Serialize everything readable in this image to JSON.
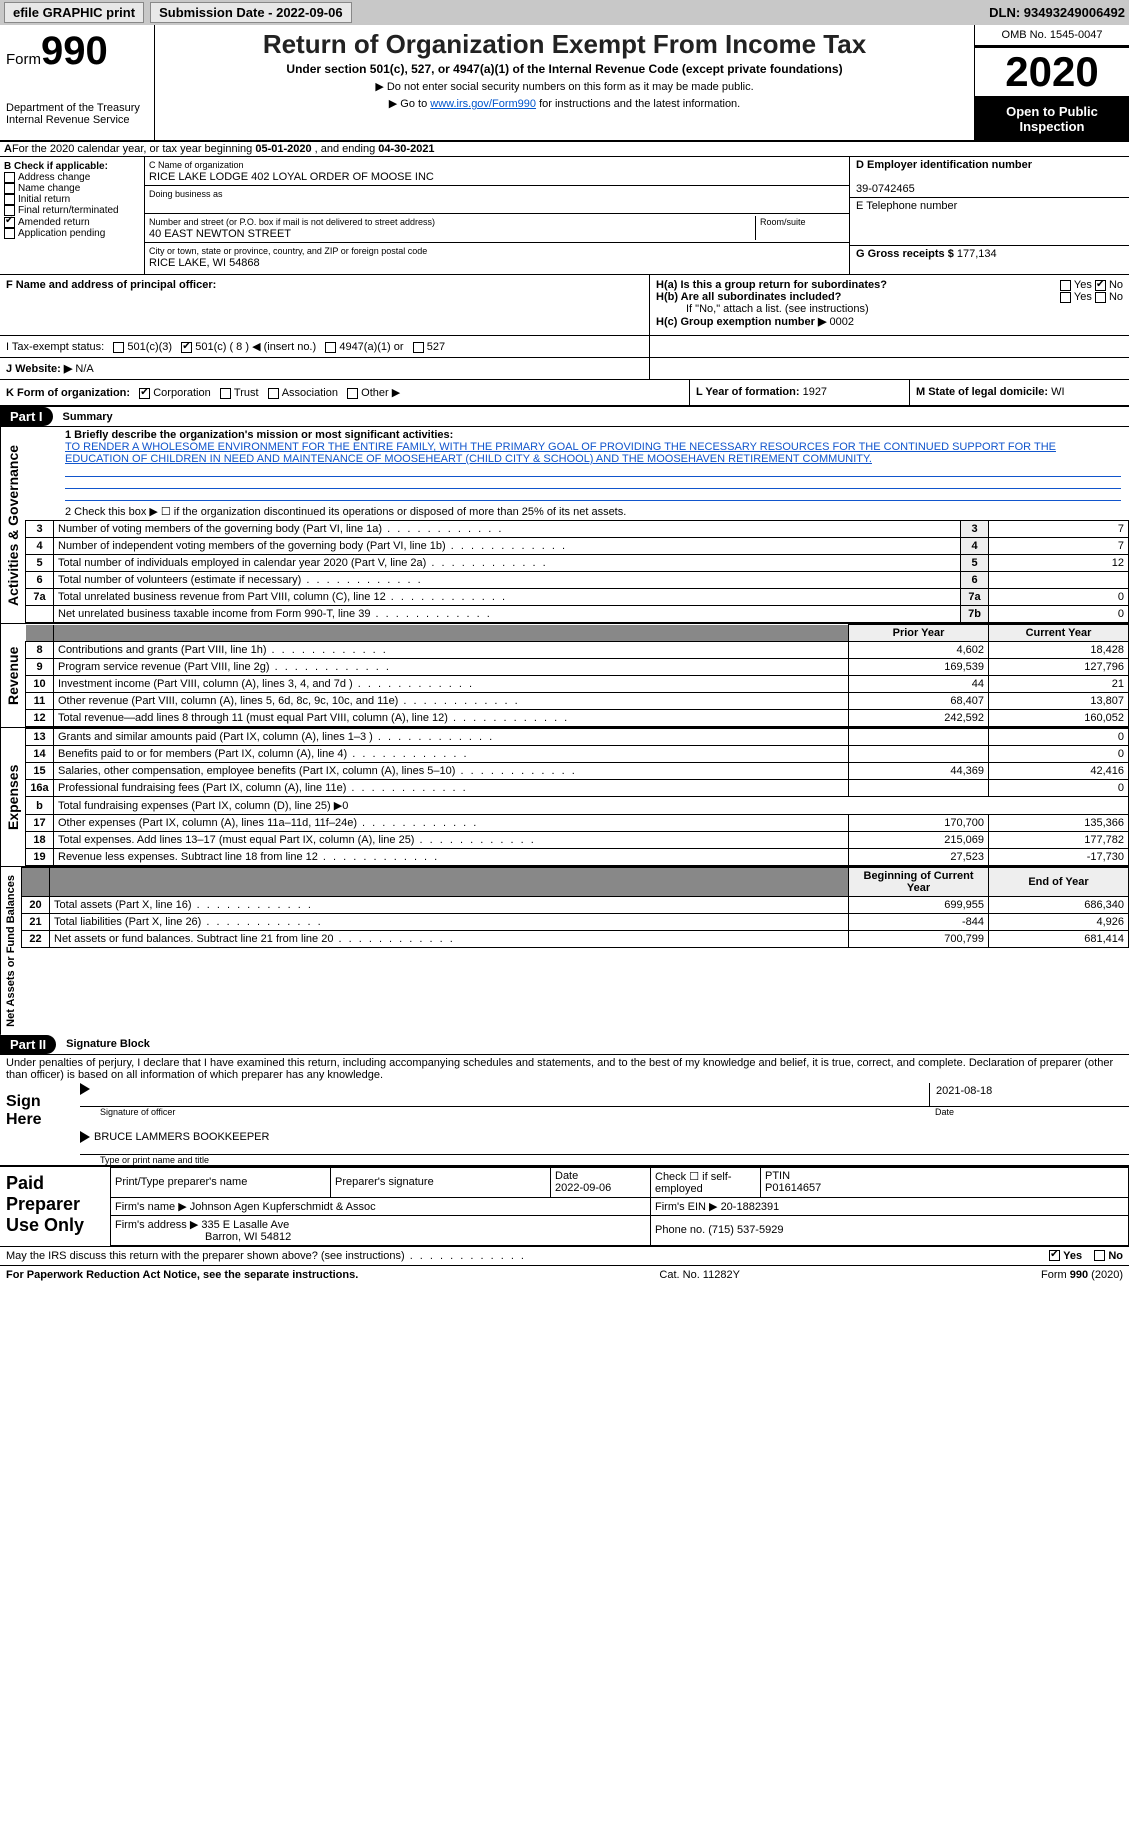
{
  "topbar": {
    "efile": "efile GRAPHIC print",
    "submission_label": "Submission Date - 2022-09-06",
    "dln_label": "DLN: 93493249006492"
  },
  "header": {
    "form_word": "Form",
    "form_num": "990",
    "dept": "Department of the Treasury",
    "irs": "Internal Revenue Service",
    "title": "Return of Organization Exempt From Income Tax",
    "sub": "Under section 501(c), 527, or 4947(a)(1) of the Internal Revenue Code (except private foundations)",
    "note1": "▶ Do not enter social security numbers on this form as it may be made public.",
    "note2_pre": "▶ Go to ",
    "note2_link": "www.irs.gov/Form990",
    "note2_post": " for instructions and the latest information.",
    "omb": "OMB No. 1545-0047",
    "year": "2020",
    "otp": "Open to Public Inspection"
  },
  "A": {
    "text_pre": "For the 2020 calendar year, or tax year beginning ",
    "begin": "05-01-2020",
    "mid": " , and ending ",
    "end": "04-30-2021"
  },
  "B": {
    "label": "B Check if applicable:",
    "items": [
      "Address change",
      "Name change",
      "Initial return",
      "Final return/terminated",
      "Amended return",
      "Application pending"
    ],
    "checked_idx": 4
  },
  "C": {
    "name_label": "C Name of organization",
    "name": "RICE LAKE LODGE 402 LOYAL ORDER OF MOOSE INC",
    "dba_label": "Doing business as",
    "dba": "",
    "street_label": "Number and street (or P.O. box if mail is not delivered to street address)",
    "room_label": "Room/suite",
    "street": "40 EAST NEWTON STREET",
    "city_label": "City or town, state or province, country, and ZIP or foreign postal code",
    "city": "RICE LAKE, WI  54868"
  },
  "D": {
    "label": "D Employer identification number",
    "value": "39-0742465"
  },
  "E": {
    "label": "E Telephone number",
    "value": ""
  },
  "G": {
    "label": "G Gross receipts $",
    "value": "177,134"
  },
  "F": {
    "label": "F  Name and address of principal officer:",
    "value": ""
  },
  "H": {
    "a_label": "H(a)  Is this a group return for subordinates?",
    "a_yes": "Yes",
    "a_no": "No",
    "a_checked": "no",
    "b_label": "H(b)  Are all subordinates included?",
    "b_yes": "Yes",
    "b_no": "No",
    "b_note": "If \"No,\" attach a list. (see instructions)",
    "c_label": "H(c)  Group exemption number ▶",
    "c_value": "0002"
  },
  "I": {
    "label": "I  Tax-exempt status:",
    "opts": [
      "501(c)(3)",
      "501(c) ( 8 ) ◀ (insert no.)",
      "4947(a)(1) or",
      "527"
    ],
    "checked_idx": 1
  },
  "J": {
    "label": "J  Website: ▶",
    "value": "N/A"
  },
  "K": {
    "label": "K Form of organization:",
    "opts": [
      "Corporation",
      "Trust",
      "Association",
      "Other ▶"
    ],
    "checked_idx": 0
  },
  "L": {
    "label": "L Year of formation:",
    "value": "1927"
  },
  "M": {
    "label": "M State of legal domicile:",
    "value": "WI"
  },
  "part1": {
    "title": "Part I",
    "subtitle": "Summary",
    "q1_label": "1  Briefly describe the organization's mission or most significant activities:",
    "q1_text": "TO RENDER A WHOLESOME ENVIRONMENT FOR THE ENTIRE FAMILY, WITH THE PRIMARY GOAL OF PROVIDING THE NECESSARY RESOURCES FOR THE CONTINUED SUPPORT FOR THE EDUCATION OF CHILDREN IN NEED AND MAINTENANCE OF MOOSEHEART (CHILD CITY & SCHOOL) AND THE MOOSEHAVEN RETIREMENT COMMUNITY.",
    "gov_tab": "Activities & Governance",
    "rev_tab": "Revenue",
    "exp_tab": "Expenses",
    "net_tab": "Net Assets or Fund Balances",
    "q2": "2  Check this box ▶ ☐ if the organization discontinued its operations or disposed of more than 25% of its net assets.",
    "lines_gov": [
      {
        "n": "3",
        "txt": "Number of voting members of the governing body (Part VI, line 1a)",
        "box": "3",
        "val": "7"
      },
      {
        "n": "4",
        "txt": "Number of independent voting members of the governing body (Part VI, line 1b)",
        "box": "4",
        "val": "7"
      },
      {
        "n": "5",
        "txt": "Total number of individuals employed in calendar year 2020 (Part V, line 2a)",
        "box": "5",
        "val": "12"
      },
      {
        "n": "6",
        "txt": "Total number of volunteers (estimate if necessary)",
        "box": "6",
        "val": ""
      },
      {
        "n": "7a",
        "txt": "Total unrelated business revenue from Part VIII, column (C), line 12",
        "box": "7a",
        "val": "0"
      },
      {
        "n": "",
        "txt": "Net unrelated business taxable income from Form 990-T, line 39",
        "box": "7b",
        "val": "0"
      }
    ],
    "col_prior": "Prior Year",
    "col_current": "Current Year",
    "lines_rev": [
      {
        "n": "8",
        "txt": "Contributions and grants (Part VIII, line 1h)",
        "p": "4,602",
        "c": "18,428"
      },
      {
        "n": "9",
        "txt": "Program service revenue (Part VIII, line 2g)",
        "p": "169,539",
        "c": "127,796"
      },
      {
        "n": "10",
        "txt": "Investment income (Part VIII, column (A), lines 3, 4, and 7d )",
        "p": "44",
        "c": "21"
      },
      {
        "n": "11",
        "txt": "Other revenue (Part VIII, column (A), lines 5, 6d, 8c, 9c, 10c, and 11e)",
        "p": "68,407",
        "c": "13,807"
      },
      {
        "n": "12",
        "txt": "Total revenue—add lines 8 through 11 (must equal Part VIII, column (A), line 12)",
        "p": "242,592",
        "c": "160,052"
      }
    ],
    "lines_exp": [
      {
        "n": "13",
        "txt": "Grants and similar amounts paid (Part IX, column (A), lines 1–3 )",
        "p": "",
        "c": "0"
      },
      {
        "n": "14",
        "txt": "Benefits paid to or for members (Part IX, column (A), line 4)",
        "p": "",
        "c": "0"
      },
      {
        "n": "15",
        "txt": "Salaries, other compensation, employee benefits (Part IX, column (A), lines 5–10)",
        "p": "44,369",
        "c": "42,416"
      },
      {
        "n": "16a",
        "txt": "Professional fundraising fees (Part IX, column (A), line 11e)",
        "p": "",
        "c": "0"
      },
      {
        "n": "b",
        "txt": "Total fundraising expenses (Part IX, column (D), line 25) ▶0",
        "p": "—",
        "c": "—"
      },
      {
        "n": "17",
        "txt": "Other expenses (Part IX, column (A), lines 11a–11d, 11f–24e)",
        "p": "170,700",
        "c": "135,366"
      },
      {
        "n": "18",
        "txt": "Total expenses. Add lines 13–17 (must equal Part IX, column (A), line 25)",
        "p": "215,069",
        "c": "177,782"
      },
      {
        "n": "19",
        "txt": "Revenue less expenses. Subtract line 18 from line 12",
        "p": "27,523",
        "c": "-17,730"
      }
    ],
    "col_begin": "Beginning of Current Year",
    "col_end": "End of Year",
    "lines_net": [
      {
        "n": "20",
        "txt": "Total assets (Part X, line 16)",
        "p": "699,955",
        "c": "686,340"
      },
      {
        "n": "21",
        "txt": "Total liabilities (Part X, line 26)",
        "p": "-844",
        "c": "4,926"
      },
      {
        "n": "22",
        "txt": "Net assets or fund balances. Subtract line 21 from line 20",
        "p": "700,799",
        "c": "681,414"
      }
    ]
  },
  "part2": {
    "title": "Part II",
    "subtitle": "Signature Block",
    "jurat": "Under penalties of perjury, I declare that I have examined this return, including accompanying schedules and statements, and to the best of my knowledge and belief, it is true, correct, and complete. Declaration of preparer (other than officer) is based on all information of which preparer has any knowledge.",
    "sign_here": "Sign Here",
    "sig_date": "2021-08-18",
    "sig_officer_label": "Signature of officer",
    "date_label": "Date",
    "name_title": "BRUCE LAMMERS  BOOKKEEPER",
    "name_title_label": "Type or print name and title"
  },
  "paid": {
    "title": "Paid Preparer Use Only",
    "print_label": "Print/Type preparer's name",
    "sig_label": "Preparer's signature",
    "date_label": "Date",
    "date": "2022-09-06",
    "check_label": "Check ☐ if self-employed",
    "ptin_label": "PTIN",
    "ptin": "P01614657",
    "firm_name_label": "Firm's name    ▶",
    "firm_name": "Johnson Agen Kupferschmidt & Assoc",
    "firm_ein_label": "Firm's EIN ▶",
    "firm_ein": "20-1882391",
    "firm_addr_label": "Firm's address ▶",
    "firm_addr1": "335 E Lasalle Ave",
    "firm_addr2": "Barron, WI  54812",
    "phone_label": "Phone no.",
    "phone": "(715) 537-5929"
  },
  "discuss": {
    "text": "May the IRS discuss this return with the preparer shown above? (see instructions)",
    "yes": "Yes",
    "no": "No",
    "checked": "yes"
  },
  "footer": {
    "left": "For Paperwork Reduction Act Notice, see the separate instructions.",
    "mid": "Cat. No. 11282Y",
    "right": "Form 990 (2020)"
  },
  "colors": {
    "link": "#0055cc",
    "topbar_bg": "#c8c8c8",
    "black": "#000000"
  }
}
